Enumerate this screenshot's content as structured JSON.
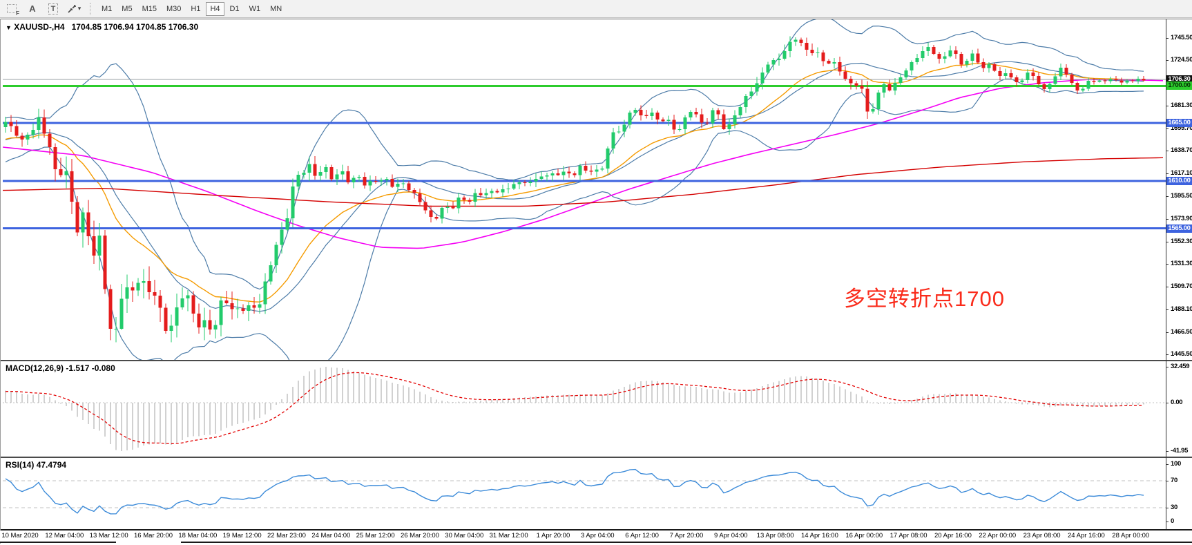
{
  "toolbar": {
    "grip_icon_label": "F",
    "text_tool_label": "A",
    "label_tool_label": "T",
    "arrows_caret": "▾",
    "timeframes": [
      "M1",
      "M5",
      "M15",
      "M30",
      "H1",
      "H4",
      "D1",
      "W1",
      "MN"
    ],
    "active_timeframe": "H4"
  },
  "chart": {
    "title_caret": "▼",
    "symbol_title": "XAUUSD-,H4",
    "ohlc": "1704.85 1706.94 1704.85 1706.30"
  },
  "annotation": {
    "text": "多空转折点1700",
    "color": "#FA2B1B"
  },
  "chart_data": {
    "type": "candlestick+indicators",
    "symbol": "XAUUSD-",
    "timeframe": "H4",
    "last_price": 1706.3,
    "price_axis": {
      "max": 1745.5,
      "min": 1445.5,
      "ticks": [
        "1745.50",
        "1724.50",
        "1681.30",
        "1659.70",
        "1638.70",
        "1617.10",
        "1595.50",
        "1573.90",
        "1552.30",
        "1531.30",
        "1509.70",
        "1488.10",
        "1466.50",
        "1445.50"
      ]
    },
    "levels": [
      {
        "name": "last-price",
        "value": 1706.3,
        "color": "#9AA0A6",
        "width": 1,
        "badge_bg": "#101010",
        "badge_fg": "#ffffff"
      },
      {
        "name": "pivot-1700",
        "value": 1700.0,
        "color": "#2CCC2C",
        "width": 3,
        "badge_bg": "#2CCC2C",
        "badge_fg": "#062b06"
      },
      {
        "name": "support-1665",
        "value": 1665.0,
        "color": "#3D63DF",
        "width": 3,
        "badge_bg": "#3D63DF",
        "badge_fg": "#ffffff"
      },
      {
        "name": "support-1610",
        "value": 1610.0,
        "color": "#3D63DF",
        "width": 3,
        "badge_bg": "#3D63DF",
        "badge_fg": "#ffffff"
      },
      {
        "name": "support-1565",
        "value": 1565.0,
        "color": "#3D63DF",
        "width": 3,
        "badge_bg": "#3D63DF",
        "badge_fg": "#ffffff"
      }
    ],
    "time_labels": [
      "10 Mar 2020",
      "12 Mar 04:00",
      "13 Mar 12:00",
      "16 Mar 20:00",
      "18 Mar 04:00",
      "19 Mar 12:00",
      "22 Mar 23:00",
      "24 Mar 04:00",
      "25 Mar 12:00",
      "26 Mar 20:00",
      "30 Mar 04:00",
      "31 Mar 12:00",
      "1 Apr 20:00",
      "3 Apr 04:00",
      "6 Apr 12:00",
      "7 Apr 20:00",
      "9 Apr 04:00",
      "13 Apr 08:00",
      "14 Apr 16:00",
      "16 Apr 00:00",
      "17 Apr 08:00",
      "20 Apr 16:00",
      "22 Apr 00:00",
      "23 Apr 08:00",
      "24 Apr 16:00",
      "28 Apr 00:00"
    ],
    "colors": {
      "bull": "#22CB6B",
      "bear": "#E41C1C",
      "bollinger": "#4D7CA8",
      "ma_orange": "#F59B00",
      "ma_magenta": "#F400F4",
      "ma_darkred": "#D40000",
      "macd_hist": "#A3A3A3",
      "macd_signal": "#E30000",
      "rsi_line": "#3C8BD9",
      "dashed_level": "#C2C2C2"
    },
    "price_path": [
      [
        8,
        1666
      ],
      [
        20,
        1658
      ],
      [
        32,
        1648
      ],
      [
        44,
        1656
      ],
      [
        56,
        1668
      ],
      [
        68,
        1650
      ],
      [
        76,
        1636
      ],
      [
        84,
        1600
      ],
      [
        90,
        1628
      ],
      [
        96,
        1618
      ],
      [
        104,
        1588
      ],
      [
        112,
        1565
      ],
      [
        120,
        1577
      ],
      [
        128,
        1558
      ],
      [
        136,
        1542
      ],
      [
        144,
        1554
      ],
      [
        152,
        1510
      ],
      [
        160,
        1470
      ],
      [
        166,
        1456
      ],
      [
        172,
        1488
      ],
      [
        180,
        1516
      ],
      [
        188,
        1498
      ],
      [
        196,
        1512
      ],
      [
        204,
        1522
      ],
      [
        212,
        1500
      ],
      [
        220,
        1512
      ],
      [
        228,
        1494
      ],
      [
        236,
        1478
      ],
      [
        244,
        1464
      ],
      [
        252,
        1480
      ],
      [
        260,
        1496
      ],
      [
        268,
        1508
      ],
      [
        276,
        1490
      ],
      [
        284,
        1478
      ],
      [
        292,
        1469
      ],
      [
        300,
        1480
      ],
      [
        308,
        1462
      ],
      [
        316,
        1486
      ],
      [
        324,
        1502
      ],
      [
        332,
        1492
      ],
      [
        340,
        1482
      ],
      [
        348,
        1494
      ],
      [
        356,
        1485
      ],
      [
        364,
        1494
      ],
      [
        372,
        1487
      ],
      [
        380,
        1502
      ],
      [
        388,
        1522
      ],
      [
        396,
        1542
      ],
      [
        404,
        1556
      ],
      [
        412,
        1568
      ],
      [
        420,
        1586
      ],
      [
        428,
        1620
      ],
      [
        436,
        1611
      ],
      [
        444,
        1628
      ],
      [
        452,
        1620
      ],
      [
        460,
        1612
      ],
      [
        468,
        1626
      ],
      [
        476,
        1617
      ],
      [
        484,
        1609
      ],
      [
        492,
        1622
      ],
      [
        500,
        1615
      ],
      [
        508,
        1605
      ],
      [
        516,
        1618
      ],
      [
        524,
        1610
      ],
      [
        532,
        1603
      ],
      [
        540,
        1614
      ],
      [
        548,
        1607
      ],
      [
        556,
        1614
      ],
      [
        564,
        1608
      ],
      [
        572,
        1603
      ],
      [
        580,
        1610
      ],
      [
        588,
        1605
      ],
      [
        596,
        1600
      ],
      [
        604,
        1594
      ],
      [
        612,
        1587
      ],
      [
        620,
        1578
      ],
      [
        628,
        1571
      ],
      [
        636,
        1580
      ],
      [
        644,
        1588
      ],
      [
        652,
        1581
      ],
      [
        660,
        1590
      ],
      [
        668,
        1596
      ],
      [
        676,
        1588
      ],
      [
        684,
        1594
      ],
      [
        692,
        1600
      ],
      [
        700,
        1595
      ],
      [
        708,
        1602
      ],
      [
        716,
        1597
      ],
      [
        724,
        1604
      ],
      [
        732,
        1599
      ],
      [
        740,
        1606
      ],
      [
        748,
        1610
      ],
      [
        756,
        1605
      ],
      [
        764,
        1612
      ],
      [
        772,
        1608
      ],
      [
        780,
        1613
      ],
      [
        788,
        1618
      ],
      [
        796,
        1612
      ],
      [
        804,
        1620
      ],
      [
        812,
        1614
      ],
      [
        820,
        1621
      ],
      [
        828,
        1613
      ],
      [
        836,
        1620
      ],
      [
        844,
        1626
      ],
      [
        852,
        1615
      ],
      [
        860,
        1623
      ],
      [
        868,
        1616
      ],
      [
        876,
        1630
      ],
      [
        884,
        1650
      ],
      [
        892,
        1661
      ],
      [
        900,
        1655
      ],
      [
        908,
        1669
      ],
      [
        916,
        1681
      ],
      [
        924,
        1675
      ],
      [
        932,
        1667
      ],
      [
        940,
        1678
      ],
      [
        948,
        1671
      ],
      [
        956,
        1664
      ],
      [
        964,
        1672
      ],
      [
        972,
        1662
      ],
      [
        980,
        1655
      ],
      [
        988,
        1665
      ],
      [
        996,
        1673
      ],
      [
        1004,
        1679
      ],
      [
        1012,
        1668
      ],
      [
        1020,
        1660
      ],
      [
        1028,
        1672
      ],
      [
        1036,
        1681
      ],
      [
        1044,
        1664
      ],
      [
        1052,
        1657
      ],
      [
        1060,
        1668
      ],
      [
        1068,
        1677
      ],
      [
        1076,
        1685
      ],
      [
        1084,
        1693
      ],
      [
        1092,
        1699
      ],
      [
        1100,
        1706
      ],
      [
        1108,
        1717
      ],
      [
        1116,
        1727
      ],
      [
        1124,
        1720
      ],
      [
        1132,
        1731
      ],
      [
        1140,
        1738
      ],
      [
        1148,
        1743
      ],
      [
        1156,
        1746
      ],
      [
        1164,
        1737
      ],
      [
        1172,
        1729
      ],
      [
        1180,
        1736
      ],
      [
        1188,
        1727
      ],
      [
        1196,
        1719
      ],
      [
        1204,
        1726
      ],
      [
        1212,
        1717
      ],
      [
        1220,
        1711
      ],
      [
        1228,
        1705
      ],
      [
        1236,
        1697
      ],
      [
        1244,
        1706
      ],
      [
        1252,
        1689
      ],
      [
        1258,
        1667
      ],
      [
        1266,
        1684
      ],
      [
        1274,
        1696
      ],
      [
        1282,
        1703
      ],
      [
        1290,
        1695
      ],
      [
        1298,
        1704
      ],
      [
        1306,
        1710
      ],
      [
        1314,
        1717
      ],
      [
        1322,
        1723
      ],
      [
        1330,
        1729
      ],
      [
        1338,
        1734
      ],
      [
        1346,
        1737
      ],
      [
        1354,
        1730
      ],
      [
        1362,
        1723
      ],
      [
        1370,
        1730
      ],
      [
        1378,
        1736
      ],
      [
        1386,
        1727
      ],
      [
        1394,
        1719
      ],
      [
        1402,
        1726
      ],
      [
        1410,
        1731
      ],
      [
        1418,
        1721
      ],
      [
        1426,
        1715
      ],
      [
        1434,
        1722
      ],
      [
        1442,
        1713
      ],
      [
        1450,
        1707
      ],
      [
        1458,
        1714
      ],
      [
        1466,
        1707
      ],
      [
        1474,
        1701
      ],
      [
        1482,
        1708
      ],
      [
        1490,
        1714
      ],
      [
        1498,
        1707
      ],
      [
        1506,
        1701
      ],
      [
        1514,
        1695
      ],
      [
        1522,
        1704
      ],
      [
        1530,
        1712
      ],
      [
        1538,
        1718
      ],
      [
        1546,
        1709
      ],
      [
        1554,
        1701
      ],
      [
        1562,
        1693
      ],
      [
        1570,
        1700
      ],
      [
        1578,
        1706
      ],
      [
        1586,
        1703
      ],
      [
        1594,
        1707
      ],
      [
        1602,
        1703
      ],
      [
        1610,
        1708
      ],
      [
        1618,
        1705
      ],
      [
        1626,
        1702
      ],
      [
        1634,
        1707
      ],
      [
        1642,
        1704
      ],
      [
        1650,
        1707
      ],
      [
        1656,
        1706
      ]
    ],
    "volatility_path": [
      [
        8,
        10
      ],
      [
        60,
        14
      ],
      [
        90,
        24
      ],
      [
        130,
        26
      ],
      [
        160,
        24
      ],
      [
        200,
        26
      ],
      [
        260,
        22
      ],
      [
        320,
        20
      ],
      [
        380,
        16
      ],
      [
        430,
        15
      ],
      [
        470,
        11
      ],
      [
        520,
        9
      ],
      [
        580,
        8
      ],
      [
        640,
        9
      ],
      [
        700,
        8
      ],
      [
        760,
        8
      ],
      [
        800,
        10
      ],
      [
        850,
        8
      ],
      [
        900,
        9
      ],
      [
        950,
        8
      ],
      [
        1000,
        8
      ],
      [
        1060,
        9
      ],
      [
        1110,
        10
      ],
      [
        1160,
        10
      ],
      [
        1210,
        8
      ],
      [
        1256,
        12
      ],
      [
        1300,
        7
      ],
      [
        1360,
        8
      ],
      [
        1420,
        7
      ],
      [
        1470,
        7
      ],
      [
        1530,
        6
      ],
      [
        1600,
        4
      ],
      [
        1656,
        4
      ]
    ],
    "overlays": {
      "bollinger": {
        "period": 20,
        "deviation": 2.0
      },
      "ma_orange_period": 20,
      "ma_magenta_path": [
        [
          4,
          1642
        ],
        [
          120,
          1634
        ],
        [
          220,
          1618
        ],
        [
          300,
          1600
        ],
        [
          370,
          1582
        ],
        [
          430,
          1568
        ],
        [
          490,
          1556
        ],
        [
          550,
          1547
        ],
        [
          610,
          1546
        ],
        [
          670,
          1552
        ],
        [
          730,
          1562
        ],
        [
          790,
          1574
        ],
        [
          850,
          1588
        ],
        [
          910,
          1602
        ],
        [
          970,
          1614
        ],
        [
          1030,
          1626
        ],
        [
          1090,
          1636
        ],
        [
          1150,
          1645
        ],
        [
          1210,
          1654
        ],
        [
          1270,
          1664
        ],
        [
          1330,
          1676
        ],
        [
          1390,
          1689
        ],
        [
          1450,
          1698
        ],
        [
          1510,
          1703
        ],
        [
          1570,
          1706
        ],
        [
          1630,
          1706
        ],
        [
          1686,
          1705
        ]
      ],
      "ma_darkred_path": [
        [
          4,
          1601
        ],
        [
          150,
          1603
        ],
        [
          320,
          1596
        ],
        [
          480,
          1590
        ],
        [
          620,
          1586
        ],
        [
          760,
          1586
        ],
        [
          880,
          1590
        ],
        [
          1000,
          1597
        ],
        [
          1120,
          1606
        ],
        [
          1240,
          1616
        ],
        [
          1360,
          1623
        ],
        [
          1480,
          1628
        ],
        [
          1600,
          1631
        ],
        [
          1686,
          1632
        ]
      ]
    },
    "macd": {
      "label": "MACD(12,26,9)",
      "values": "-1.517 -0.080",
      "fast": 12,
      "slow": 26,
      "signal": 9,
      "axis": [
        {
          "label": "32.459",
          "value": 32.459
        },
        {
          "label": "0.00",
          "value": 0
        },
        {
          "label": "-41.95",
          "value": -41.95
        }
      ]
    },
    "rsi": {
      "label": "RSI(14)",
      "value": "47.4794",
      "period": 14,
      "levels": [
        70,
        30
      ],
      "axis": [
        {
          "label": "100",
          "value": 100
        },
        {
          "label": "70",
          "value": 70
        },
        {
          "label": "30",
          "value": 30
        },
        {
          "label": "0",
          "value": 0
        }
      ]
    }
  }
}
